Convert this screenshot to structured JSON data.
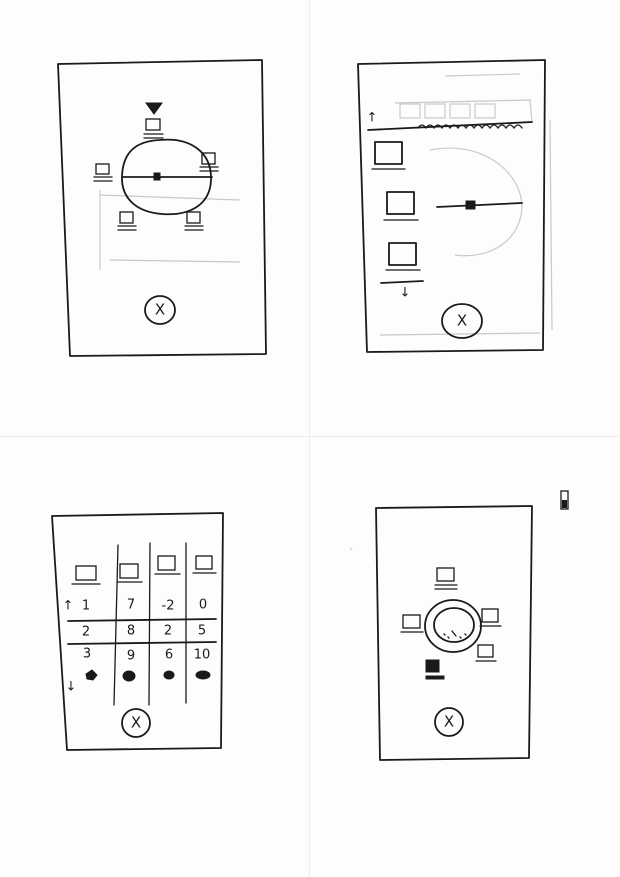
{
  "sketch_1": {
    "close_button": "X"
  },
  "sketch_2": {
    "scroll_up_arrow": "↑",
    "scroll_down_arrow": "↓",
    "close_button": "X"
  },
  "sketch_3": {
    "scroll_up_arrow": "↑",
    "scroll_down_arrow": "↓",
    "grid_rows": [
      [
        "1",
        "7",
        "-2",
        "0"
      ],
      [
        "2",
        "8",
        "2",
        "5"
      ],
      [
        "3",
        "9",
        "6",
        "10"
      ]
    ],
    "close_button": "X"
  },
  "sketch_4": {
    "close_button": "X"
  }
}
